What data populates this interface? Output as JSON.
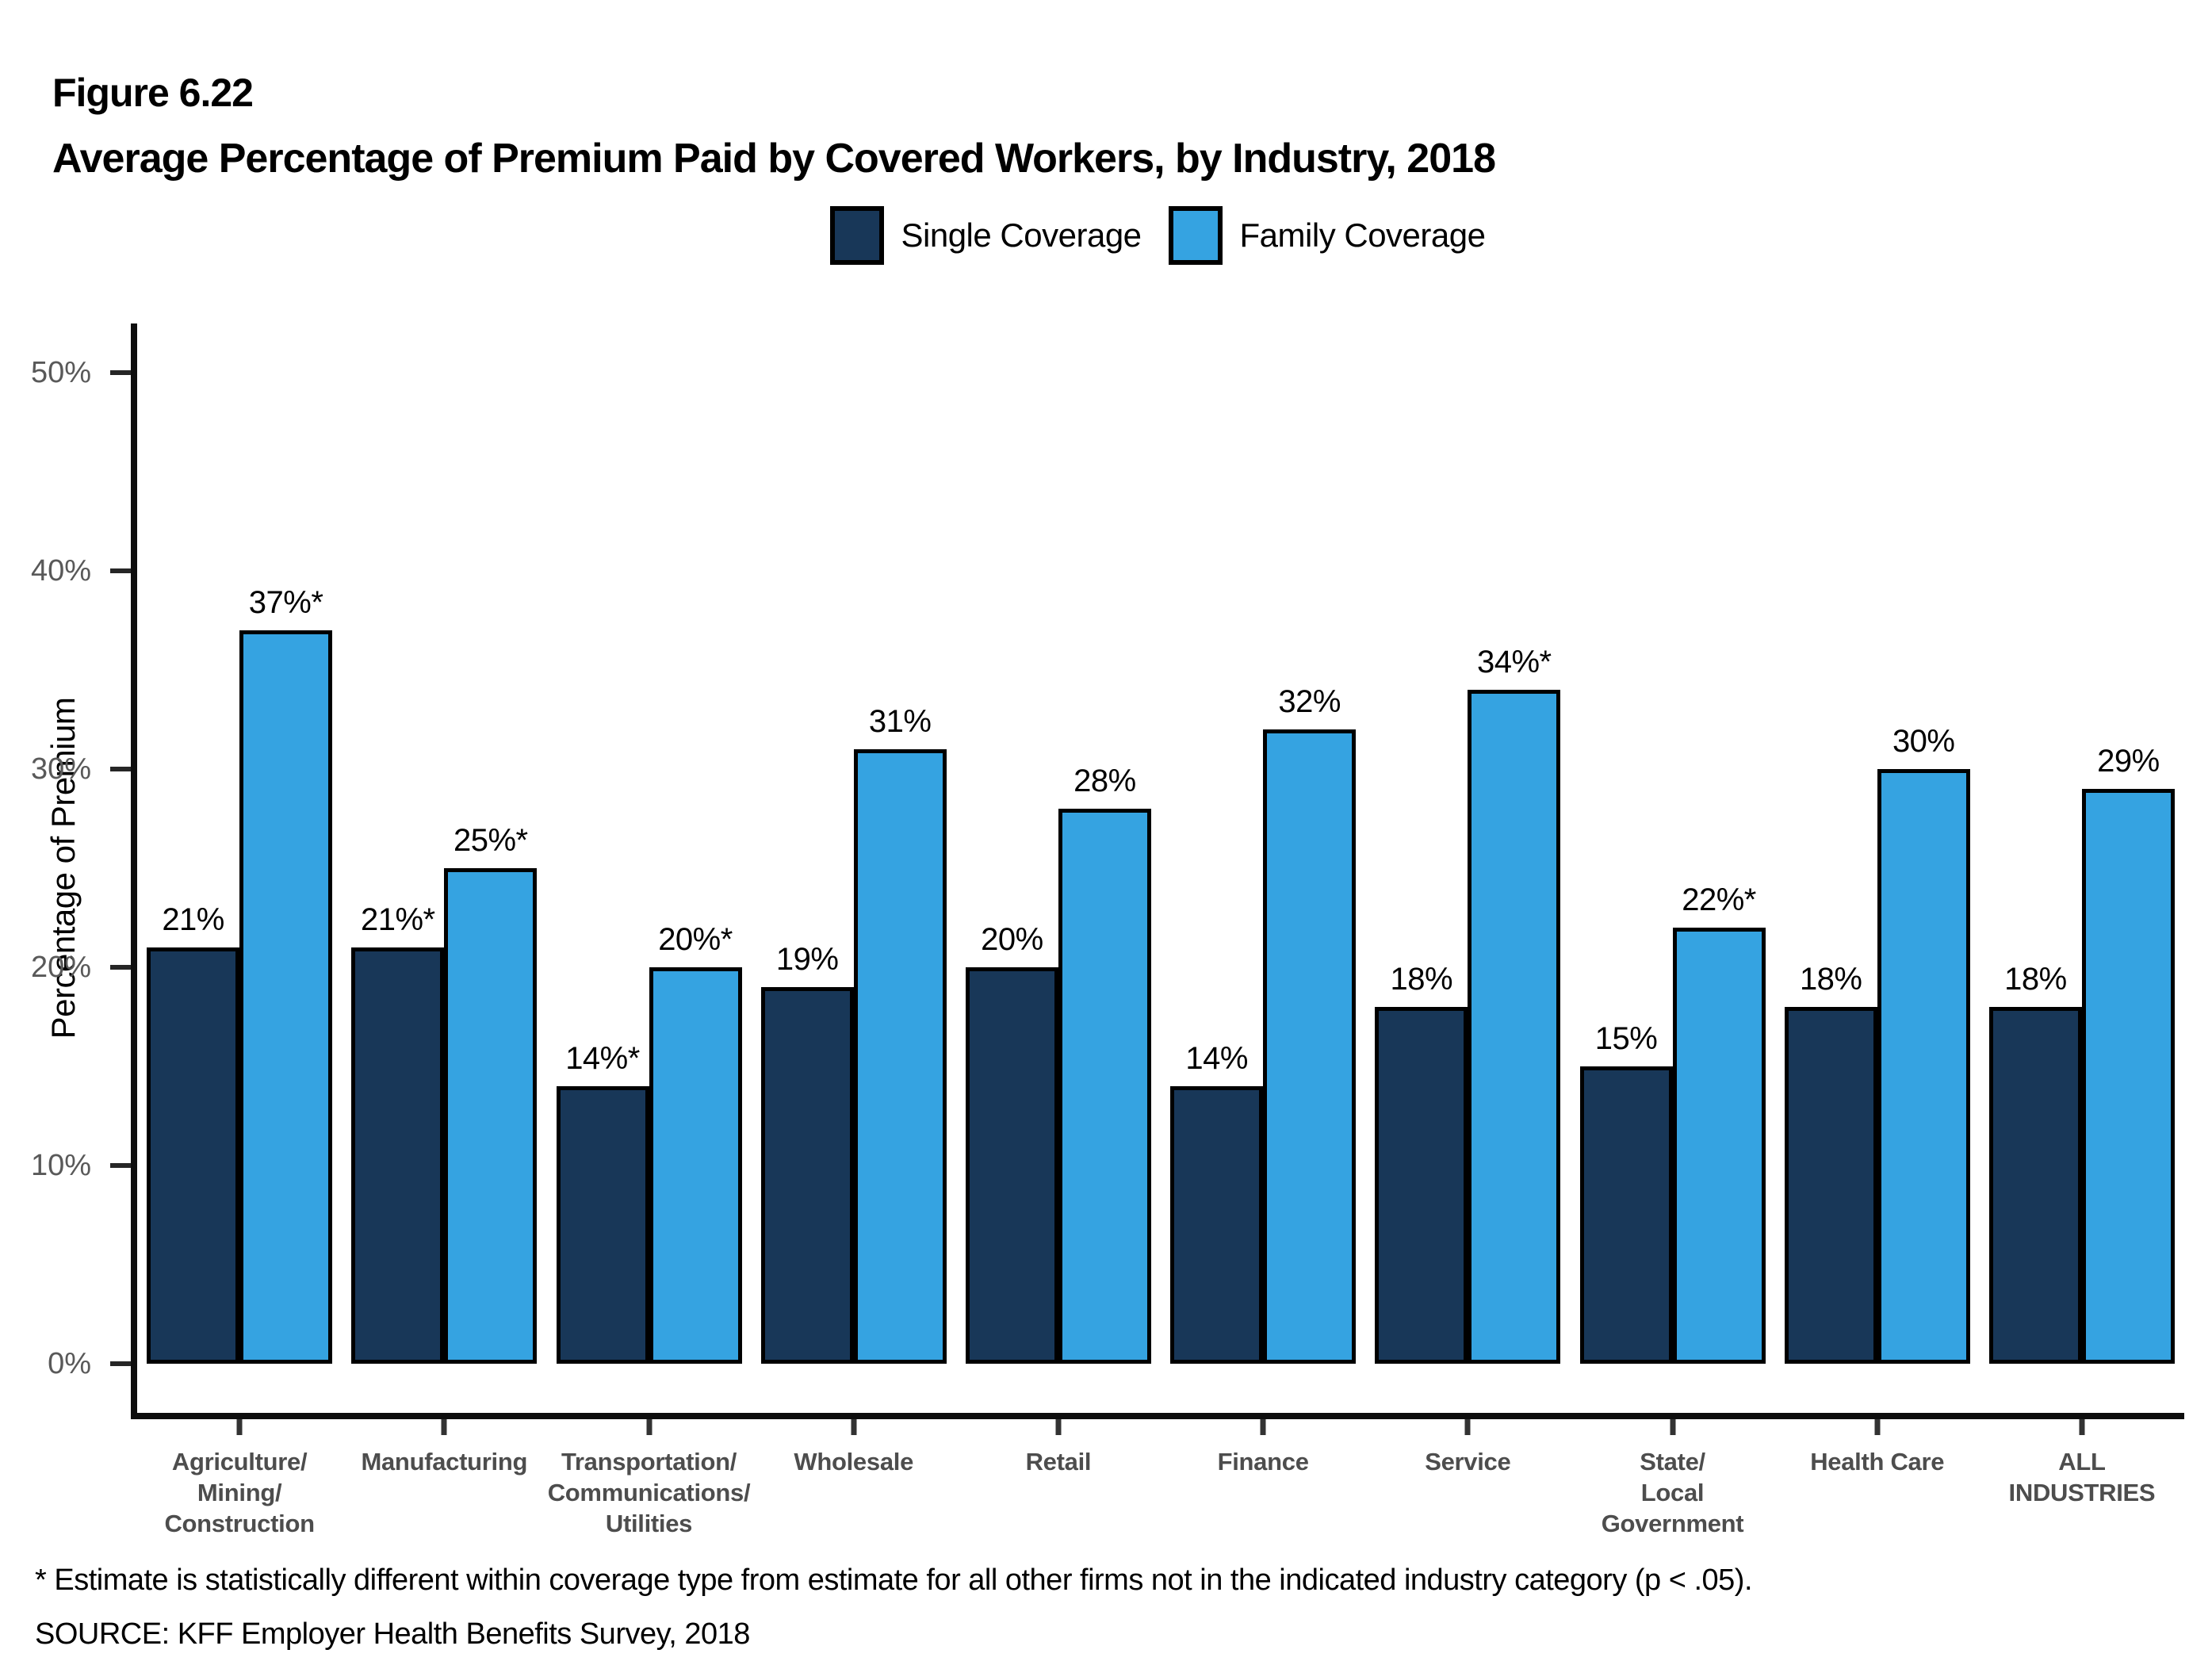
{
  "figure": {
    "label": "Figure 6.22",
    "title": "Average Percentage of Premium Paid by Covered Workers, by Industry, 2018"
  },
  "chart_data": {
    "type": "bar",
    "title": "Average Percentage of Premium Paid by Covered Workers, by Industry, 2018",
    "xlabel": "",
    "ylabel": "Percentage of Premium",
    "yticks": [
      0,
      10,
      20,
      30,
      40,
      50
    ],
    "ytick_format": "percent",
    "ylim": [
      0,
      52.5
    ],
    "grid": false,
    "legend_position": "top-center",
    "categories": [
      "Agriculture/Mining/Construction",
      "Manufacturing",
      "Transportation/Communications/Utilities",
      "Wholesale",
      "Retail",
      "Finance",
      "Service",
      "State/Local Government",
      "Health Care",
      "ALL INDUSTRIES"
    ],
    "category_lines": [
      [
        "Agriculture/",
        "Mining/",
        "Construction"
      ],
      [
        "Manufacturing"
      ],
      [
        "Transportation/",
        "Communications/",
        "Utilities"
      ],
      [
        "Wholesale"
      ],
      [
        "Retail"
      ],
      [
        "Finance"
      ],
      [
        "Service"
      ],
      [
        "State/",
        "Local",
        "Government"
      ],
      [
        "Health Care"
      ],
      [
        "ALL",
        "INDUSTRIES"
      ]
    ],
    "series": [
      {
        "name": "Single Coverage",
        "color": "#183758",
        "values": [
          21,
          21,
          14,
          19,
          20,
          14,
          18,
          15,
          18,
          18
        ],
        "labels": [
          "21%",
          "21%*",
          "14%*",
          "19%",
          "20%",
          "14%",
          "18%",
          "15%",
          "18%",
          "18%"
        ]
      },
      {
        "name": "Family Coverage",
        "color": "#35A3E1",
        "values": [
          37,
          25,
          20,
          31,
          28,
          32,
          34,
          22,
          30,
          29
        ],
        "labels": [
          "37%*",
          "25%*",
          "20%*",
          "31%",
          "28%",
          "32%",
          "34%*",
          "22%*",
          "30%",
          "29%"
        ]
      }
    ]
  },
  "footnote": "* Estimate is statistically different within coverage type from estimate for all other firms not in the indicated industry category (p < .05).",
  "source": "SOURCE: KFF Employer Health Benefits Survey, 2018"
}
